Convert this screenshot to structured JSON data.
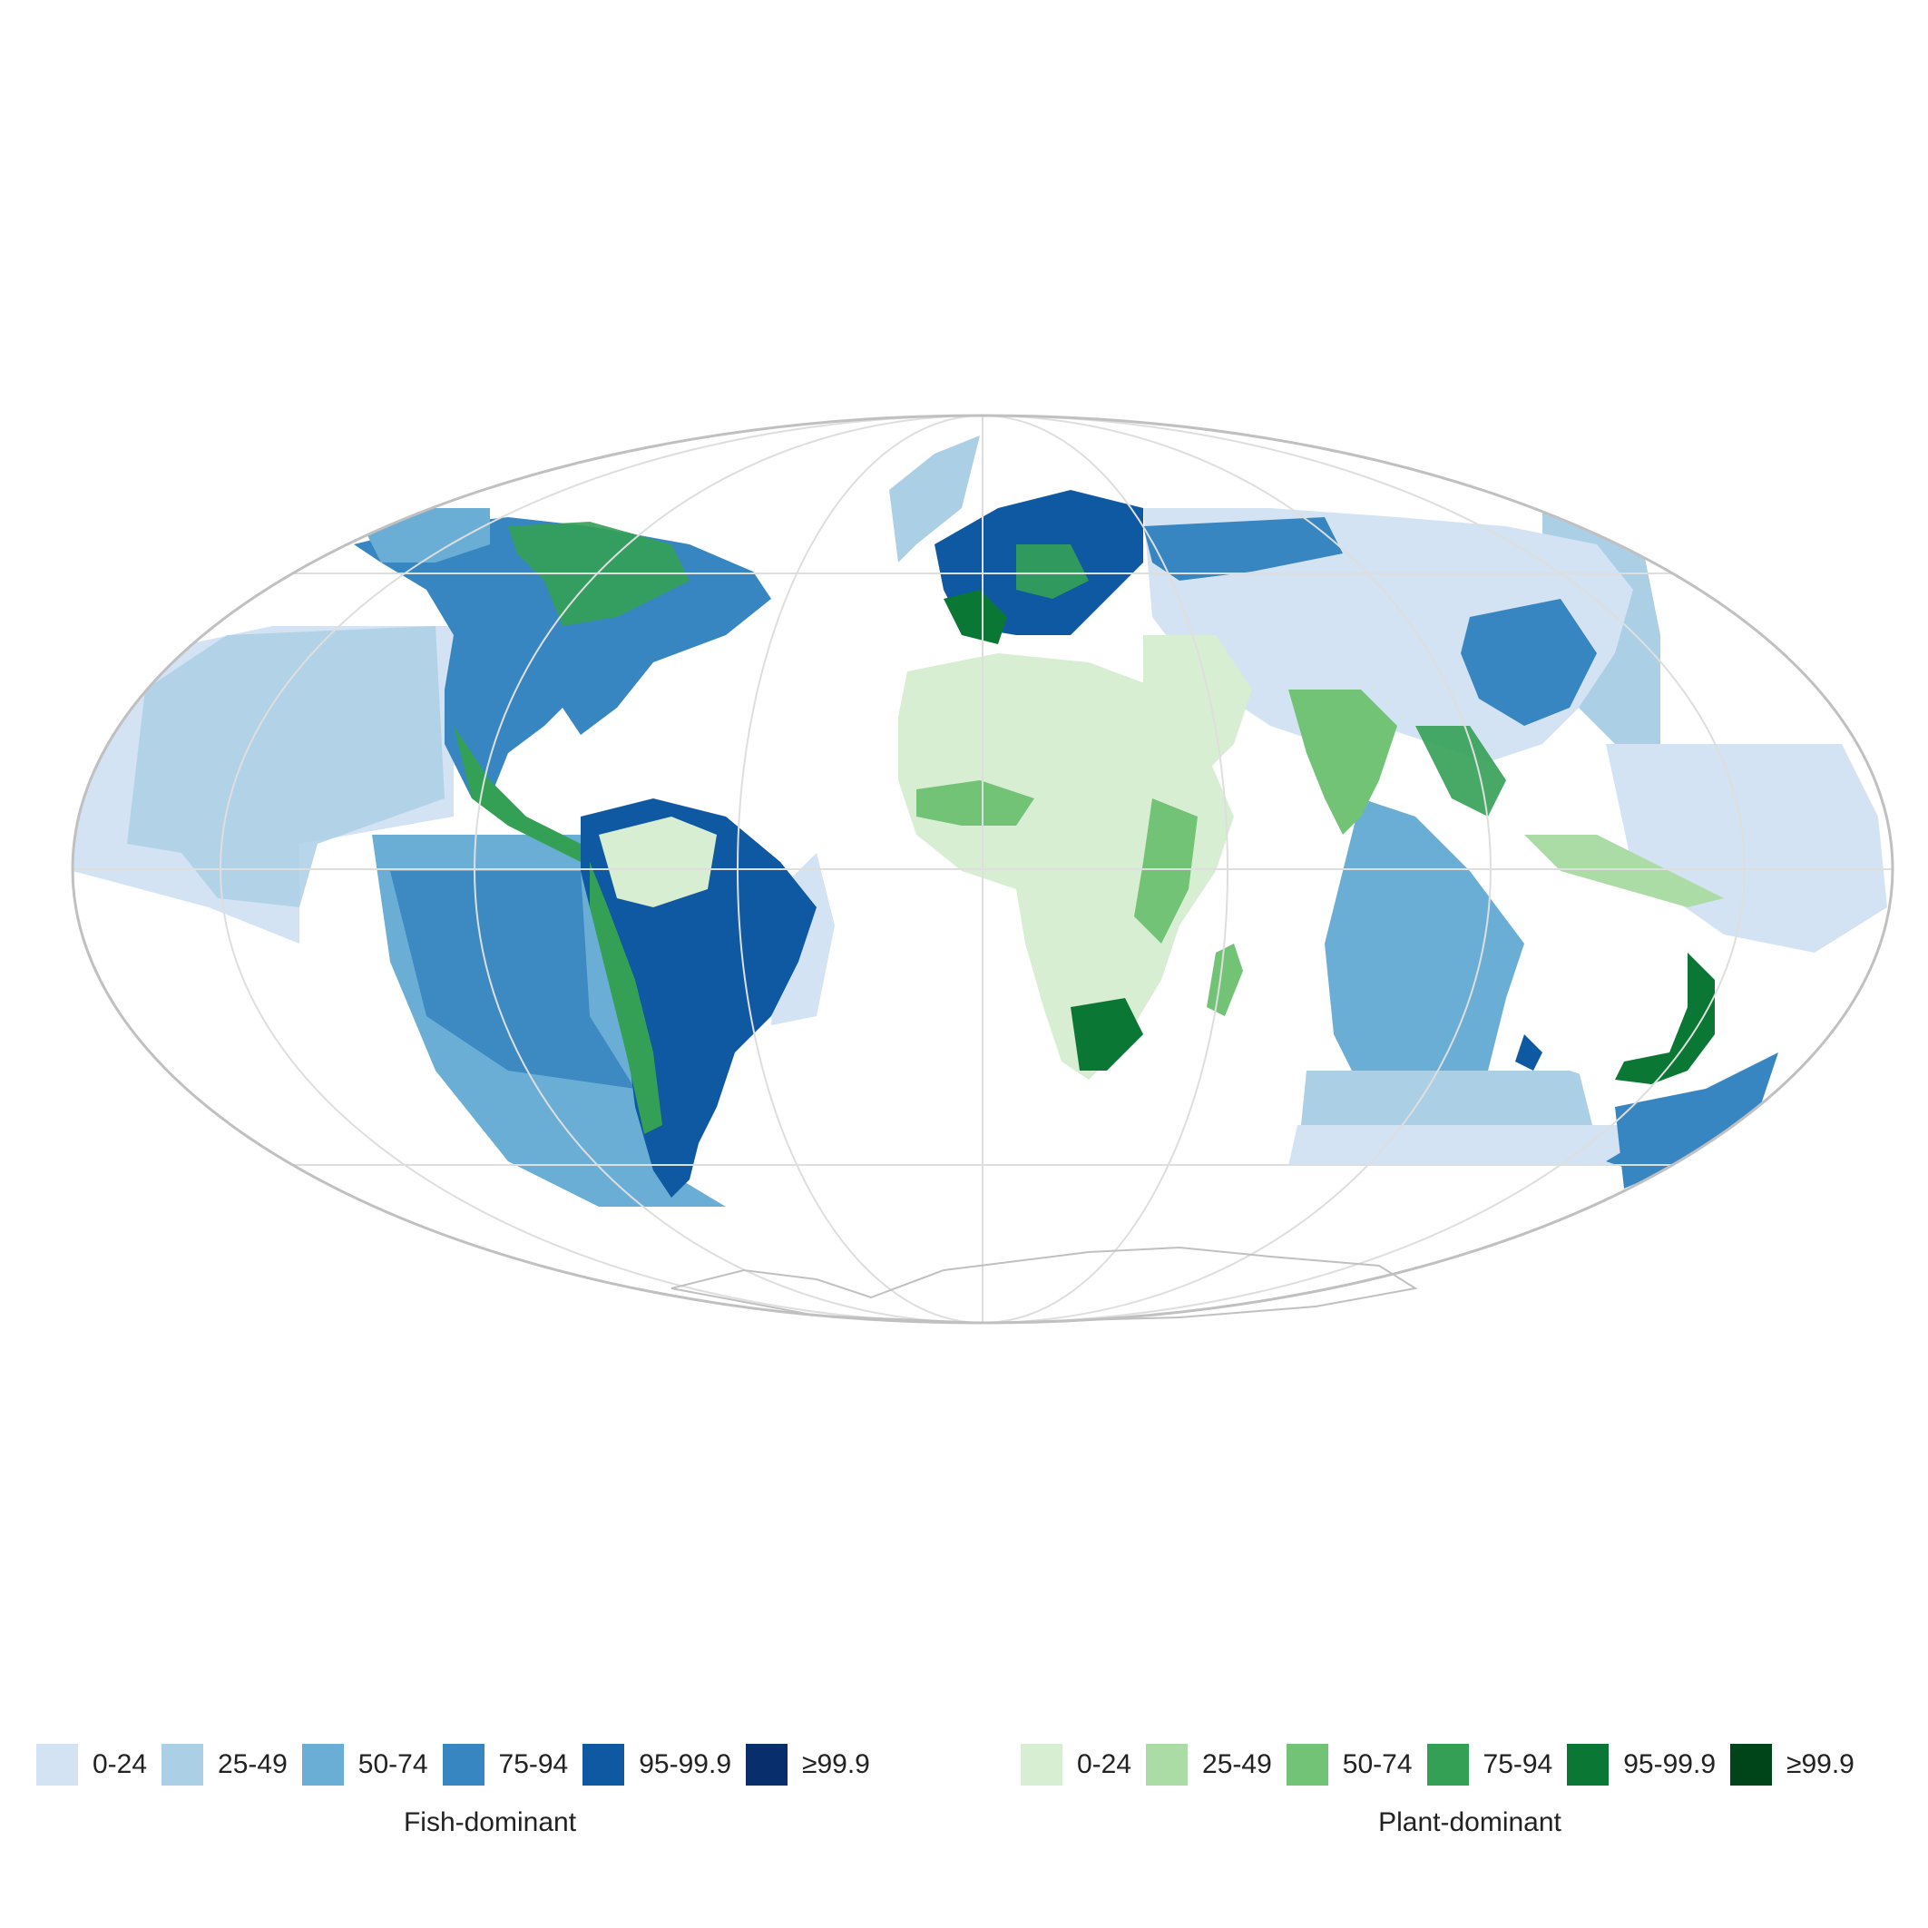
{
  "colors": {
    "fish": [
      "#d3e3f3",
      "#abcfe5",
      "#6aaed6",
      "#3886c1",
      "#0e59a2",
      "#082f6b"
    ],
    "plant": [
      "#d8eed2",
      "#acdca5",
      "#73c377",
      "#34a055",
      "#0b7734",
      "#00441a"
    ],
    "outline": "#c0c0c0",
    "graticule": "#dedede"
  },
  "legend_fish": {
    "title": "Fish-dominant",
    "items": [
      {
        "label": "0-24"
      },
      {
        "label": "25-49"
      },
      {
        "label": "50-74"
      },
      {
        "label": "75-94"
      },
      {
        "label": "95-99.9"
      },
      {
        "label": "≥99.9"
      }
    ]
  },
  "legend_plant": {
    "title": "Plant-dominant",
    "items": [
      {
        "label": "0-24"
      },
      {
        "label": "25-49"
      },
      {
        "label": "50-74"
      },
      {
        "label": "75-94"
      },
      {
        "label": "95-99.9"
      },
      {
        "label": "≥99.9"
      }
    ]
  }
}
